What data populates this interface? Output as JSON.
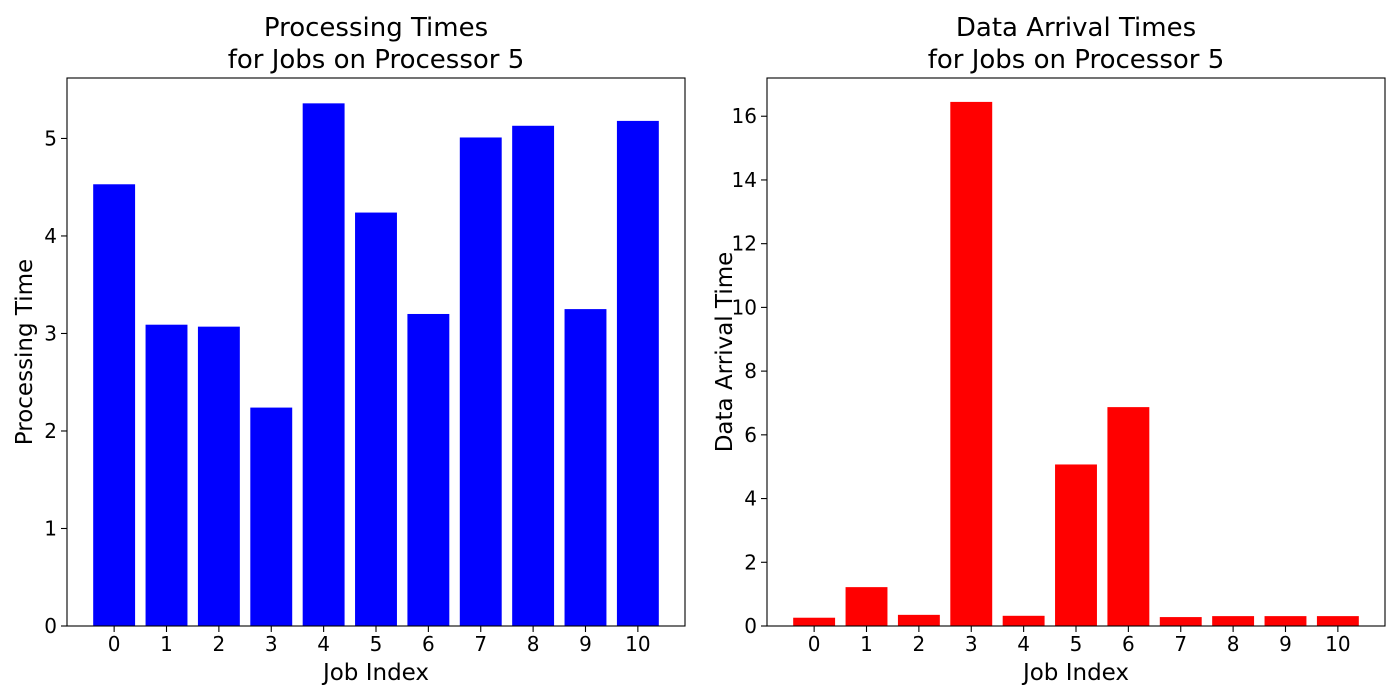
{
  "chart_data": [
    {
      "type": "bar",
      "title": [
        "Processing Times",
        "for Jobs on Processor 5"
      ],
      "xlabel": "Job Index",
      "ylabel": "Processing Time",
      "categories": [
        "0",
        "1",
        "2",
        "3",
        "4",
        "5",
        "6",
        "7",
        "8",
        "9",
        "10"
      ],
      "values": [
        4.53,
        3.09,
        3.07,
        2.24,
        5.36,
        4.24,
        3.2,
        5.01,
        5.13,
        3.25,
        5.18
      ],
      "ylim": [
        0,
        5.62
      ],
      "yticks": [
        0,
        1,
        2,
        3,
        4,
        5
      ],
      "color": "#0000ff",
      "grid": false,
      "legend": "none"
    },
    {
      "type": "bar",
      "title": [
        "Data Arrival Times",
        "for Jobs on Processor 5"
      ],
      "xlabel": "Job Index",
      "ylabel": "Data Arrival Time",
      "categories": [
        "0",
        "1",
        "2",
        "3",
        "4",
        "5",
        "6",
        "7",
        "8",
        "9",
        "10"
      ],
      "values": [
        0.26,
        1.22,
        0.35,
        16.45,
        0.32,
        5.07,
        6.87,
        0.28,
        0.31,
        0.31,
        0.31
      ],
      "ylim": [
        0,
        17.2
      ],
      "yticks": [
        0,
        2,
        4,
        6,
        8,
        10,
        12,
        14,
        16
      ],
      "color": "#ff0000",
      "grid": false,
      "legend": "none"
    }
  ]
}
